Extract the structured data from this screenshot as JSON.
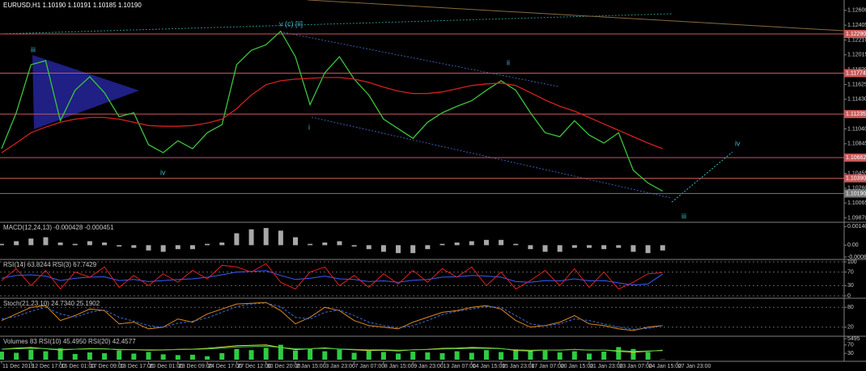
{
  "chart_data": [
    {
      "type": "line",
      "title": "EURUSD,H1  1.10190 1.10191 1.10185 1.10190",
      "categories": [
        "11 Dec 2019",
        null,
        "12 Dec 17:00",
        null,
        "16 Dec 01:00",
        null,
        "17 Dec 09:00",
        null,
        "18 Dec 17:00",
        null,
        "20 Dec 01:00",
        null,
        "23 Dec 09:00",
        null,
        "24 Dec 17:00",
        null,
        "27 Dec 12:00",
        null,
        "30 Dec 20:00",
        null,
        "2 Jan 15:00",
        null,
        "3 Jan 23:00",
        null,
        "7 Jan 07:00",
        null,
        "8 Jan 15:00",
        null,
        "9 Jan 23:00",
        null,
        "13 Jan 07:00",
        null,
        "14 Jan 15:00",
        null,
        "15 Jan 23:00",
        null,
        "17 Jan 07:00",
        null,
        "20 Jan 15:00",
        null,
        "21 Jan 23:00",
        null,
        "23 Jan 07:00",
        null,
        "24 Jan 15:00",
        null,
        "27 Jan 23:00"
      ],
      "series": [
        {
          "color": "#3cc43c",
          "values": [
            1.1078,
            1.11253,
            1.11885,
            1.11937,
            1.11148,
            1.11548,
            1.11727,
            1.11516,
            1.11201,
            1.11253,
            1.10833,
            1.10727,
            1.10885,
            1.1078,
            1.1099,
            1.11096,
            1.11885,
            1.12074,
            1.12148,
            1.12326,
            1.1199,
            1.11359,
            1.11779,
            1.1199,
            1.11695,
            1.11485,
            1.11169,
            1.11043,
            1.10917,
            1.11127,
            1.11253,
            1.11338,
            1.11411,
            1.11548,
            1.11674,
            1.11548,
            1.11253,
            1.1099,
            1.10938,
            1.11148,
            1.10959,
            1.10854,
            1.1099,
            1.10496,
            1.10328,
            1.10222,
            null
          ]
        },
        {
          "color": "#d42020",
          "values": [
            1.10727,
            1.10854,
            1.1099,
            1.11064,
            1.11127,
            1.11169,
            1.1119,
            1.1119,
            1.11169,
            1.11127,
            1.11085,
            1.11075,
            1.11075,
            1.11085,
            1.11117,
            1.11169,
            1.11306,
            1.11485,
            1.11622,
            1.11674,
            1.11695,
            1.11706,
            1.11716,
            1.11716,
            1.11695,
            1.11653,
            1.1159,
            1.11537,
            1.11506,
            1.11506,
            1.11527,
            1.11569,
            1.11611,
            1.11632,
            1.11643,
            1.11611,
            1.11516,
            1.11422,
            1.11338,
            1.11274,
            1.1119,
            1.11106,
            1.11022,
            1.10938,
            1.10854,
            1.1078,
            null
          ]
        }
      ],
      "ylim": [
        1.09854,
        1.12715
      ],
      "yticks": [
        {
          "value": 1.126,
          "label": "1.12600"
        },
        1.12405,
        {
          "value": 1.1221,
          "label": "1.12210"
        },
        1.12015,
        {
          "value": 1.1182,
          "label": "1.11820"
        },
        1.11625,
        {
          "value": 1.1143,
          "label": "1.11430"
        },
        1.11235,
        {
          "value": 1.1104,
          "label": "1.11040"
        },
        1.10845,
        {
          "value": 1.1065,
          "label": "1.10650"
        },
        1.10455,
        {
          "value": 1.1026,
          "label": "1.10260"
        },
        1.10065,
        {
          "value": 1.0987,
          "label": "1.09870"
        }
      ],
      "levels": [
        {
          "value": 1.1229,
          "label": "1.12290"
        },
        1.11774,
        1.11235,
        1.10662,
        {
          "value": 1.1039,
          "label": "1.10390"
        }
      ],
      "level_color": "#c85a5a",
      "current_price": {
        "value": 1.1019,
        "label": "1.10190"
      },
      "current_color": "#7a7a7a",
      "annotations": [
        "iii",
        "iv",
        "v (c) [ii]",
        "ii",
        "i",
        "iv",
        "iii"
      ],
      "annotation_color": "#3cb8c8"
    },
    {
      "type": "bar",
      "title": "MACD(12,24,13) -0.000428 -0.000451",
      "color": "#a8a8a8",
      "values": [
        0.0001,
        0.0003,
        0.0005,
        0.0006,
        0.0002,
        0.0001,
        0.0003,
        0.0002,
        -0.0001,
        -0.0002,
        -0.0004,
        -0.0005,
        -0.0003,
        -0.0003,
        0.0001,
        0.0002,
        0.0009,
        0.0012,
        0.0013,
        0.0011,
        0.0006,
        0.0001,
        0.0002,
        0.0003,
        -0.0001,
        -0.0003,
        -0.0005,
        -0.0006,
        -0.0006,
        -0.0003,
        0.0001,
        0.0002,
        0.0003,
        0.0004,
        0.0004,
        0.0001,
        -0.0003,
        -0.0005,
        -0.0005,
        -0.0002,
        -0.0002,
        -0.0003,
        -0.0002,
        -0.0005,
        -0.0006,
        -0.0004
      ],
      "ylim": [
        -0.000897,
        0.00155
      ],
      "yticks": [
        0.001408,
        {
          "value": 0,
          "label": "0.00"
        },
        -0.000897
      ]
    },
    {
      "type": "line",
      "title": "RSI(14) 63.8244  RSI(3) 67.7429",
      "series": [
        {
          "color": "#3a5cff",
          "values": [
            52,
            60,
            62,
            58,
            45,
            52,
            55,
            56,
            45,
            48,
            42,
            45,
            48,
            50,
            55,
            62,
            70,
            72,
            74,
            60,
            48,
            52,
            58,
            50,
            48,
            42,
            44,
            40,
            46,
            48,
            55,
            56,
            60,
            58,
            55,
            42,
            40,
            45,
            44,
            50,
            44,
            45,
            38,
            32,
            35,
            64
          ]
        },
        {
          "color": "#e02020",
          "values": [
            45,
            80,
            30,
            75,
            20,
            70,
            55,
            85,
            25,
            60,
            30,
            65,
            40,
            75,
            50,
            90,
            85,
            70,
            95,
            40,
            20,
            70,
            85,
            30,
            60,
            25,
            65,
            35,
            75,
            40,
            80,
            55,
            85,
            30,
            70,
            20,
            45,
            75,
            30,
            80,
            25,
            70,
            20,
            40,
            65,
            68
          ]
        }
      ],
      "ylim": [
        0,
        100
      ],
      "yticks": [
        100,
        70,
        30,
        0
      ],
      "grid": true
    },
    {
      "type": "line",
      "title": "Stoch(21,23,10) 24.7340 25.1902",
      "series": [
        {
          "color": "#e08a20",
          "values": [
            40,
            60,
            80,
            85,
            40,
            55,
            75,
            70,
            30,
            35,
            15,
            20,
            45,
            35,
            60,
            75,
            90,
            92,
            95,
            70,
            30,
            50,
            80,
            70,
            40,
            25,
            20,
            15,
            35,
            50,
            65,
            70,
            80,
            85,
            75,
            40,
            20,
            25,
            35,
            55,
            30,
            25,
            15,
            10,
            20,
            25
          ]
        },
        {
          "color": "#3a6fd8",
          "dashed": true,
          "values": [
            45,
            52,
            68,
            80,
            60,
            50,
            65,
            72,
            50,
            38,
            25,
            20,
            32,
            38,
            48,
            65,
            82,
            90,
            93,
            82,
            50,
            45,
            65,
            72,
            55,
            35,
            25,
            18,
            25,
            40,
            58,
            68,
            75,
            82,
            80,
            55,
            30,
            24,
            30,
            45,
            40,
            30,
            20,
            14,
            16,
            25
          ]
        }
      ],
      "ylim": [
        0,
        100
      ],
      "yticks": [
        80,
        20
      ],
      "grid": true
    },
    {
      "type": "bar",
      "title": "Volumes 83  RSI(10) 45.4950  RSI(20) 42.4577",
      "color": "#2ecc40",
      "values": [
        2100,
        1800,
        2600,
        2200,
        3000,
        1500,
        1900,
        1700,
        2400,
        1600,
        2000,
        1400,
        1200,
        1300,
        900,
        1700,
        2800,
        2500,
        3100,
        3900,
        2400,
        2900,
        2200,
        2600,
        1800,
        2300,
        2000,
        1600,
        2100,
        1900,
        1700,
        2200,
        1800,
        2500,
        2000,
        2700,
        2300,
        2400,
        1900,
        2200,
        1600,
        2100,
        3300,
        2800,
        2000,
        83
      ],
      "ylim": [
        0,
        5495
      ],
      "yticks": [
        5495
      ],
      "series": [
        {
          "color": "#e8e040",
          "axis": "y2",
          "values": [
            50,
            55,
            58,
            52,
            46,
            50,
            53,
            52,
            47,
            48,
            45,
            46,
            49,
            50,
            54,
            60,
            66,
            68,
            70,
            58,
            48,
            52,
            56,
            50,
            47,
            44,
            45,
            42,
            47,
            49,
            54,
            55,
            58,
            56,
            53,
            44,
            42,
            46,
            45,
            49,
            45,
            46,
            40,
            36,
            40,
            45.5
          ]
        },
        {
          "color": "#40c040",
          "axis": "y2",
          "values": [
            50,
            52,
            54,
            53,
            49,
            50,
            51,
            51,
            49,
            48,
            47,
            47,
            48,
            49,
            51,
            55,
            60,
            62,
            64,
            58,
            52,
            52,
            54,
            51,
            49,
            47,
            47,
            45,
            47,
            48,
            51,
            52,
            54,
            54,
            52,
            47,
            45,
            46,
            46,
            48,
            46,
            46,
            43,
            40,
            41,
            42.5
          ]
        }
      ],
      "y2lim": [
        0,
        100
      ],
      "y2ticks": [
        70,
        30
      ]
    }
  ]
}
